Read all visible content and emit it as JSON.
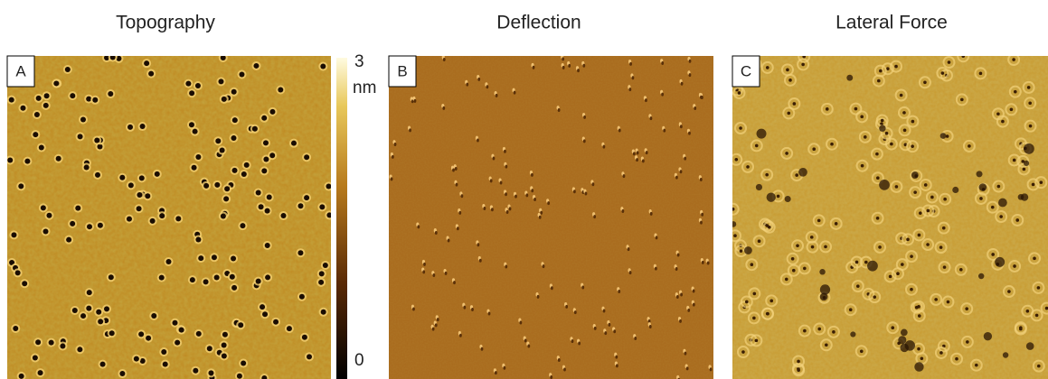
{
  "panels": [
    {
      "title": "Topography",
      "label": "A"
    },
    {
      "title": "Deflection",
      "label": "B"
    },
    {
      "title": "Lateral Force",
      "label": "C"
    }
  ],
  "colorbar": {
    "max": "3",
    "unit": "nm",
    "min": "0"
  }
}
